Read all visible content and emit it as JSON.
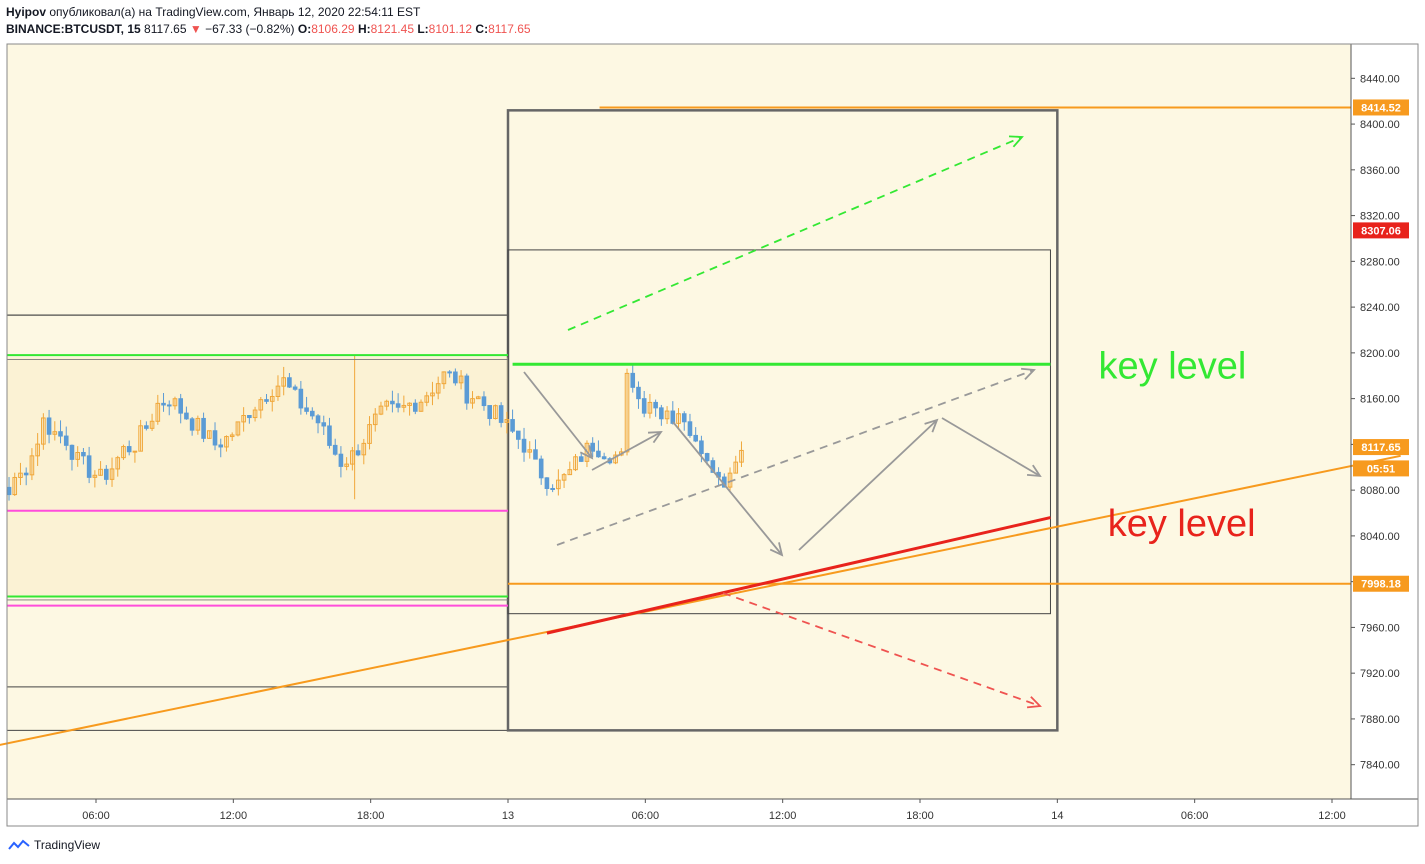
{
  "header": {
    "author": "Hyipov",
    "published_text": "опубликовал(а) на TradingView.com, Январь 12, 2020 22:54:11 EST",
    "symbol": "BINANCE:BTCUSDT, 15",
    "last": "8117.65",
    "change_arrow": "▼",
    "change": "−67.33 (−0.82%)",
    "o_label": "O:",
    "o": "8106.29",
    "h_label": "H:",
    "h": "8121.45",
    "l_label": "L:",
    "l": "8101.12",
    "c_label": "C:",
    "c": "8117.65"
  },
  "footer": {
    "brand": "TradingView",
    "logo": "tradingview-logo-icon"
  },
  "colors": {
    "plot_bg": "#fdf8e3",
    "bull": "#f0a73a",
    "bear": "#5b9bd5",
    "green_level": "#33e833",
    "magenta_level": "#ff4ddb",
    "orange_line": "#f79a1e",
    "red_line": "#e8231c",
    "arrow_gray": "#999999",
    "box_border": "#666666"
  },
  "chart_data": {
    "type": "candlestick",
    "y_axis": {
      "ylim": [
        7810,
        8470
      ],
      "ticks": [
        7840,
        7880,
        7920,
        7960,
        8000,
        8040,
        8080,
        8120,
        8160,
        8200,
        8240,
        8280,
        8320,
        8360,
        8400,
        8440
      ],
      "tick_labels": [
        "7840.00",
        "7880.00",
        "7920.00",
        "7960.00",
        "8000.00",
        "8040.00",
        "8080.00",
        "8120.00",
        "8160.00",
        "8200.00",
        "8240.00",
        "8280.00",
        "8320.00",
        "8360.00",
        "8400.00",
        "8440.00"
      ],
      "price_tags": [
        {
          "label": "8414.52",
          "value": 8414.52,
          "color": "#f79a1e"
        },
        {
          "label": "8307.06",
          "value": 8307.06,
          "color": "#e8231c"
        },
        {
          "label": "8117.65",
          "value": 8117.65,
          "color": "#f79a1e"
        },
        {
          "label": "05:51",
          "value": 8099,
          "color": "#f79a1e"
        },
        {
          "label": "7998.18",
          "value": 7998.18,
          "color": "#f79a1e"
        }
      ]
    },
    "x_axis": {
      "hours_range": [
        -8.0,
        41.5
      ],
      "ticks": [
        {
          "h": 6,
          "label": "06:00"
        },
        {
          "h": 12,
          "label": "12:00"
        },
        {
          "h": 18,
          "label": "18:00"
        },
        {
          "h": 24,
          "label": "13"
        },
        {
          "h": 30,
          "label": "06:00"
        },
        {
          "h": 36,
          "label": "12:00"
        },
        {
          "h": 42,
          "label": "18:00"
        },
        {
          "h": 48,
          "label": "14"
        },
        {
          "h": 54,
          "label": "06:00"
        },
        {
          "h": 60,
          "label": "12:00"
        }
      ]
    },
    "candles_summary": {
      "interval_minutes": 15,
      "first_hour": 2.0,
      "seed_closes": [
        8072,
        8085,
        8090,
        8095,
        8088,
        8080,
        8092,
        8110,
        8140,
        8130,
        8125,
        8105,
        8098,
        8090,
        8100,
        8115,
        8120,
        8135,
        8155,
        8160,
        8150,
        8140,
        8130,
        8120,
        8125,
        8135,
        8150,
        8160,
        8170,
        8175,
        8160,
        8150,
        8140,
        8120,
        8105,
        8110,
        8125,
        8140,
        8150,
        8148,
        8155,
        8160,
        8170,
        8180,
        8178,
        8165,
        8160,
        8150,
        8140,
        8130,
        8120,
        8100,
        8090,
        8085,
        8095,
        8110,
        8120,
        8115,
        8110,
        8105
      ],
      "last_close": 8117.65
    },
    "levels": [
      {
        "name": "green-level-upper",
        "value": 8198,
        "from_h": 2.0,
        "to_h": 24,
        "color": "#33e833"
      },
      {
        "name": "green-level-lower",
        "value": 7987,
        "from_h": 2.0,
        "to_h": 24,
        "color": "#33e833"
      },
      {
        "name": "magenta-level-upper",
        "value": 8062,
        "from_h": 2.0,
        "to_h": 24,
        "color": "#ff4ddb"
      },
      {
        "name": "magenta-level-lower",
        "value": 7979,
        "from_h": 2.0,
        "to_h": 24,
        "color": "#ff4ddb"
      },
      {
        "name": "key-level-green",
        "value_from": 8190,
        "value_to": 8190,
        "from_h": 24.2,
        "to_h": 47.7,
        "color": "#33e833"
      },
      {
        "name": "orange-level-8414",
        "value": 8414.52,
        "from_h": 28,
        "to_h": 63,
        "color": "#f79a1e"
      },
      {
        "name": "orange-level-7998",
        "value": 7998.18,
        "from_h": 24,
        "to_h": 63,
        "color": "#f79a1e"
      }
    ],
    "trendline": {
      "from": {
        "h": -0.7,
        "v": 7847
      },
      "to": {
        "h": 63,
        "v": 8110
      }
    },
    "red_line": {
      "from": {
        "h": 25.7,
        "v": 7955
      },
      "to": {
        "h": 47.7,
        "v": 8056
      }
    },
    "rectangles": [
      {
        "name": "range-rect-left",
        "from_h": 2.0,
        "to_h": 24,
        "v_top": 8233,
        "v_bottom": 7908
      },
      {
        "name": "range-rect-left-outer",
        "from_h": 2.0,
        "to_h": 24,
        "v_top": 8233,
        "v_bottom": 7870
      },
      {
        "name": "projection-box-outer",
        "from_h": 24,
        "to_h": 48,
        "v_top": 8412,
        "v_bottom": 7870
      },
      {
        "name": "projection-box-inner",
        "from_h": 24,
        "to_h": 47.7,
        "v_top": 8290,
        "v_bottom": 7972
      }
    ],
    "annotations": [
      {
        "text": "key level",
        "color": "#33e833",
        "h": 49.8,
        "v": 8190
      },
      {
        "text": "key level",
        "color": "#e8231c",
        "h": 50.2,
        "v": 8052
      }
    ],
    "grid": false,
    "legend": "none"
  }
}
